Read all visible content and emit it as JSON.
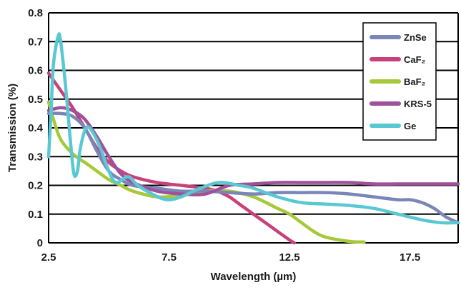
{
  "chart_data": {
    "type": "line",
    "title": "",
    "xlabel": "Wavelength (µm)",
    "ylabel": "Transmission (%)",
    "xlim": [
      2.5,
      19.5
    ],
    "ylim": [
      0,
      0.8
    ],
    "x_ticks": [
      2.5,
      7.5,
      12.5,
      17.5
    ],
    "x_tick_labels": [
      "2.5",
      "7.5",
      "12.5",
      "17.5"
    ],
    "y_ticks": [
      0,
      0.1,
      0.2,
      0.3,
      0.4,
      0.5,
      0.6,
      0.7,
      0.8
    ],
    "y_tick_labels": [
      "0",
      "0.1",
      "0.2",
      "0.3",
      "0.4",
      "0.5",
      "0.6",
      "0.7",
      "0.8"
    ],
    "grid": "horizontal",
    "legend_position": "top-right",
    "series": [
      {
        "name": "ZnSe",
        "color": "#7b86b8",
        "points": [
          [
            2.5,
            0.45
          ],
          [
            3.0,
            0.45
          ],
          [
            3.5,
            0.44
          ],
          [
            4.0,
            0.4
          ],
          [
            4.5,
            0.32
          ],
          [
            5.0,
            0.25
          ],
          [
            5.5,
            0.22
          ],
          [
            6.0,
            0.2
          ],
          [
            7.0,
            0.19
          ],
          [
            8.0,
            0.18
          ],
          [
            9.0,
            0.18
          ],
          [
            10.0,
            0.175
          ],
          [
            11.0,
            0.17
          ],
          [
            12.0,
            0.175
          ],
          [
            13.0,
            0.175
          ],
          [
            14.0,
            0.175
          ],
          [
            15.0,
            0.17
          ],
          [
            16.0,
            0.16
          ],
          [
            17.0,
            0.15
          ],
          [
            17.5,
            0.15
          ],
          [
            18.0,
            0.14
          ],
          [
            18.5,
            0.12
          ],
          [
            19.0,
            0.09
          ],
          [
            19.5,
            0.07
          ]
        ]
      },
      {
        "name": "CaF₂",
        "color": "#c8417a",
        "points": [
          [
            2.5,
            0.59
          ],
          [
            3.0,
            0.53
          ],
          [
            3.5,
            0.47
          ],
          [
            4.0,
            0.4
          ],
          [
            4.5,
            0.33
          ],
          [
            5.0,
            0.28
          ],
          [
            5.5,
            0.25
          ],
          [
            6.0,
            0.23
          ],
          [
            7.0,
            0.21
          ],
          [
            8.0,
            0.2
          ],
          [
            9.0,
            0.19
          ],
          [
            9.5,
            0.18
          ],
          [
            10.0,
            0.16
          ],
          [
            10.5,
            0.13
          ],
          [
            11.0,
            0.1
          ],
          [
            11.5,
            0.07
          ],
          [
            12.0,
            0.04
          ],
          [
            12.5,
            0.01
          ],
          [
            12.7,
            0.0
          ]
        ]
      },
      {
        "name": "BaF₂",
        "color": "#a6c93a",
        "points": [
          [
            2.5,
            0.49
          ],
          [
            2.7,
            0.43
          ],
          [
            3.0,
            0.36
          ],
          [
            3.5,
            0.31
          ],
          [
            4.0,
            0.28
          ],
          [
            4.5,
            0.25
          ],
          [
            5.0,
            0.22
          ],
          [
            5.5,
            0.2
          ],
          [
            6.0,
            0.18
          ],
          [
            7.0,
            0.16
          ],
          [
            8.0,
            0.165
          ],
          [
            9.0,
            0.18
          ],
          [
            10.0,
            0.18
          ],
          [
            11.0,
            0.16
          ],
          [
            12.0,
            0.12
          ],
          [
            12.5,
            0.1
          ],
          [
            13.0,
            0.07
          ],
          [
            13.5,
            0.04
          ],
          [
            14.0,
            0.02
          ],
          [
            15.0,
            0.005
          ],
          [
            15.6,
            0.003
          ]
        ]
      },
      {
        "name": "KRS-5",
        "color": "#9f519b",
        "points": [
          [
            2.5,
            0.46
          ],
          [
            3.0,
            0.47
          ],
          [
            3.5,
            0.46
          ],
          [
            4.0,
            0.43
          ],
          [
            4.5,
            0.37
          ],
          [
            5.0,
            0.3
          ],
          [
            5.5,
            0.24
          ],
          [
            6.0,
            0.21
          ],
          [
            7.0,
            0.18
          ],
          [
            8.0,
            0.17
          ],
          [
            9.0,
            0.17
          ],
          [
            10.0,
            0.2
          ],
          [
            11.0,
            0.205
          ],
          [
            12.0,
            0.21
          ],
          [
            13.0,
            0.21
          ],
          [
            14.0,
            0.21
          ],
          [
            15.0,
            0.21
          ],
          [
            16.0,
            0.205
          ],
          [
            17.0,
            0.205
          ],
          [
            18.0,
            0.205
          ],
          [
            19.0,
            0.205
          ],
          [
            19.5,
            0.205
          ]
        ]
      },
      {
        "name": "Ge",
        "color": "#5ac8d3",
        "points": [
          [
            2.5,
            0.3
          ],
          [
            2.6,
            0.45
          ],
          [
            2.7,
            0.62
          ],
          [
            2.9,
            0.72
          ],
          [
            3.0,
            0.7
          ],
          [
            3.2,
            0.55
          ],
          [
            3.4,
            0.36
          ],
          [
            3.55,
            0.24
          ],
          [
            3.7,
            0.25
          ],
          [
            3.8,
            0.32
          ],
          [
            4.0,
            0.39
          ],
          [
            4.2,
            0.4
          ],
          [
            4.6,
            0.34
          ],
          [
            5.0,
            0.25
          ],
          [
            5.3,
            0.21
          ],
          [
            5.8,
            0.23
          ],
          [
            6.2,
            0.2
          ],
          [
            6.8,
            0.17
          ],
          [
            7.4,
            0.15
          ],
          [
            8.0,
            0.16
          ],
          [
            8.8,
            0.19
          ],
          [
            9.6,
            0.21
          ],
          [
            10.4,
            0.2
          ],
          [
            11.0,
            0.19
          ],
          [
            12.0,
            0.16
          ],
          [
            13.0,
            0.14
          ],
          [
            14.0,
            0.135
          ],
          [
            15.0,
            0.13
          ],
          [
            16.0,
            0.12
          ],
          [
            17.0,
            0.1
          ],
          [
            18.0,
            0.08
          ],
          [
            18.8,
            0.07
          ],
          [
            19.5,
            0.07
          ]
        ]
      }
    ]
  }
}
